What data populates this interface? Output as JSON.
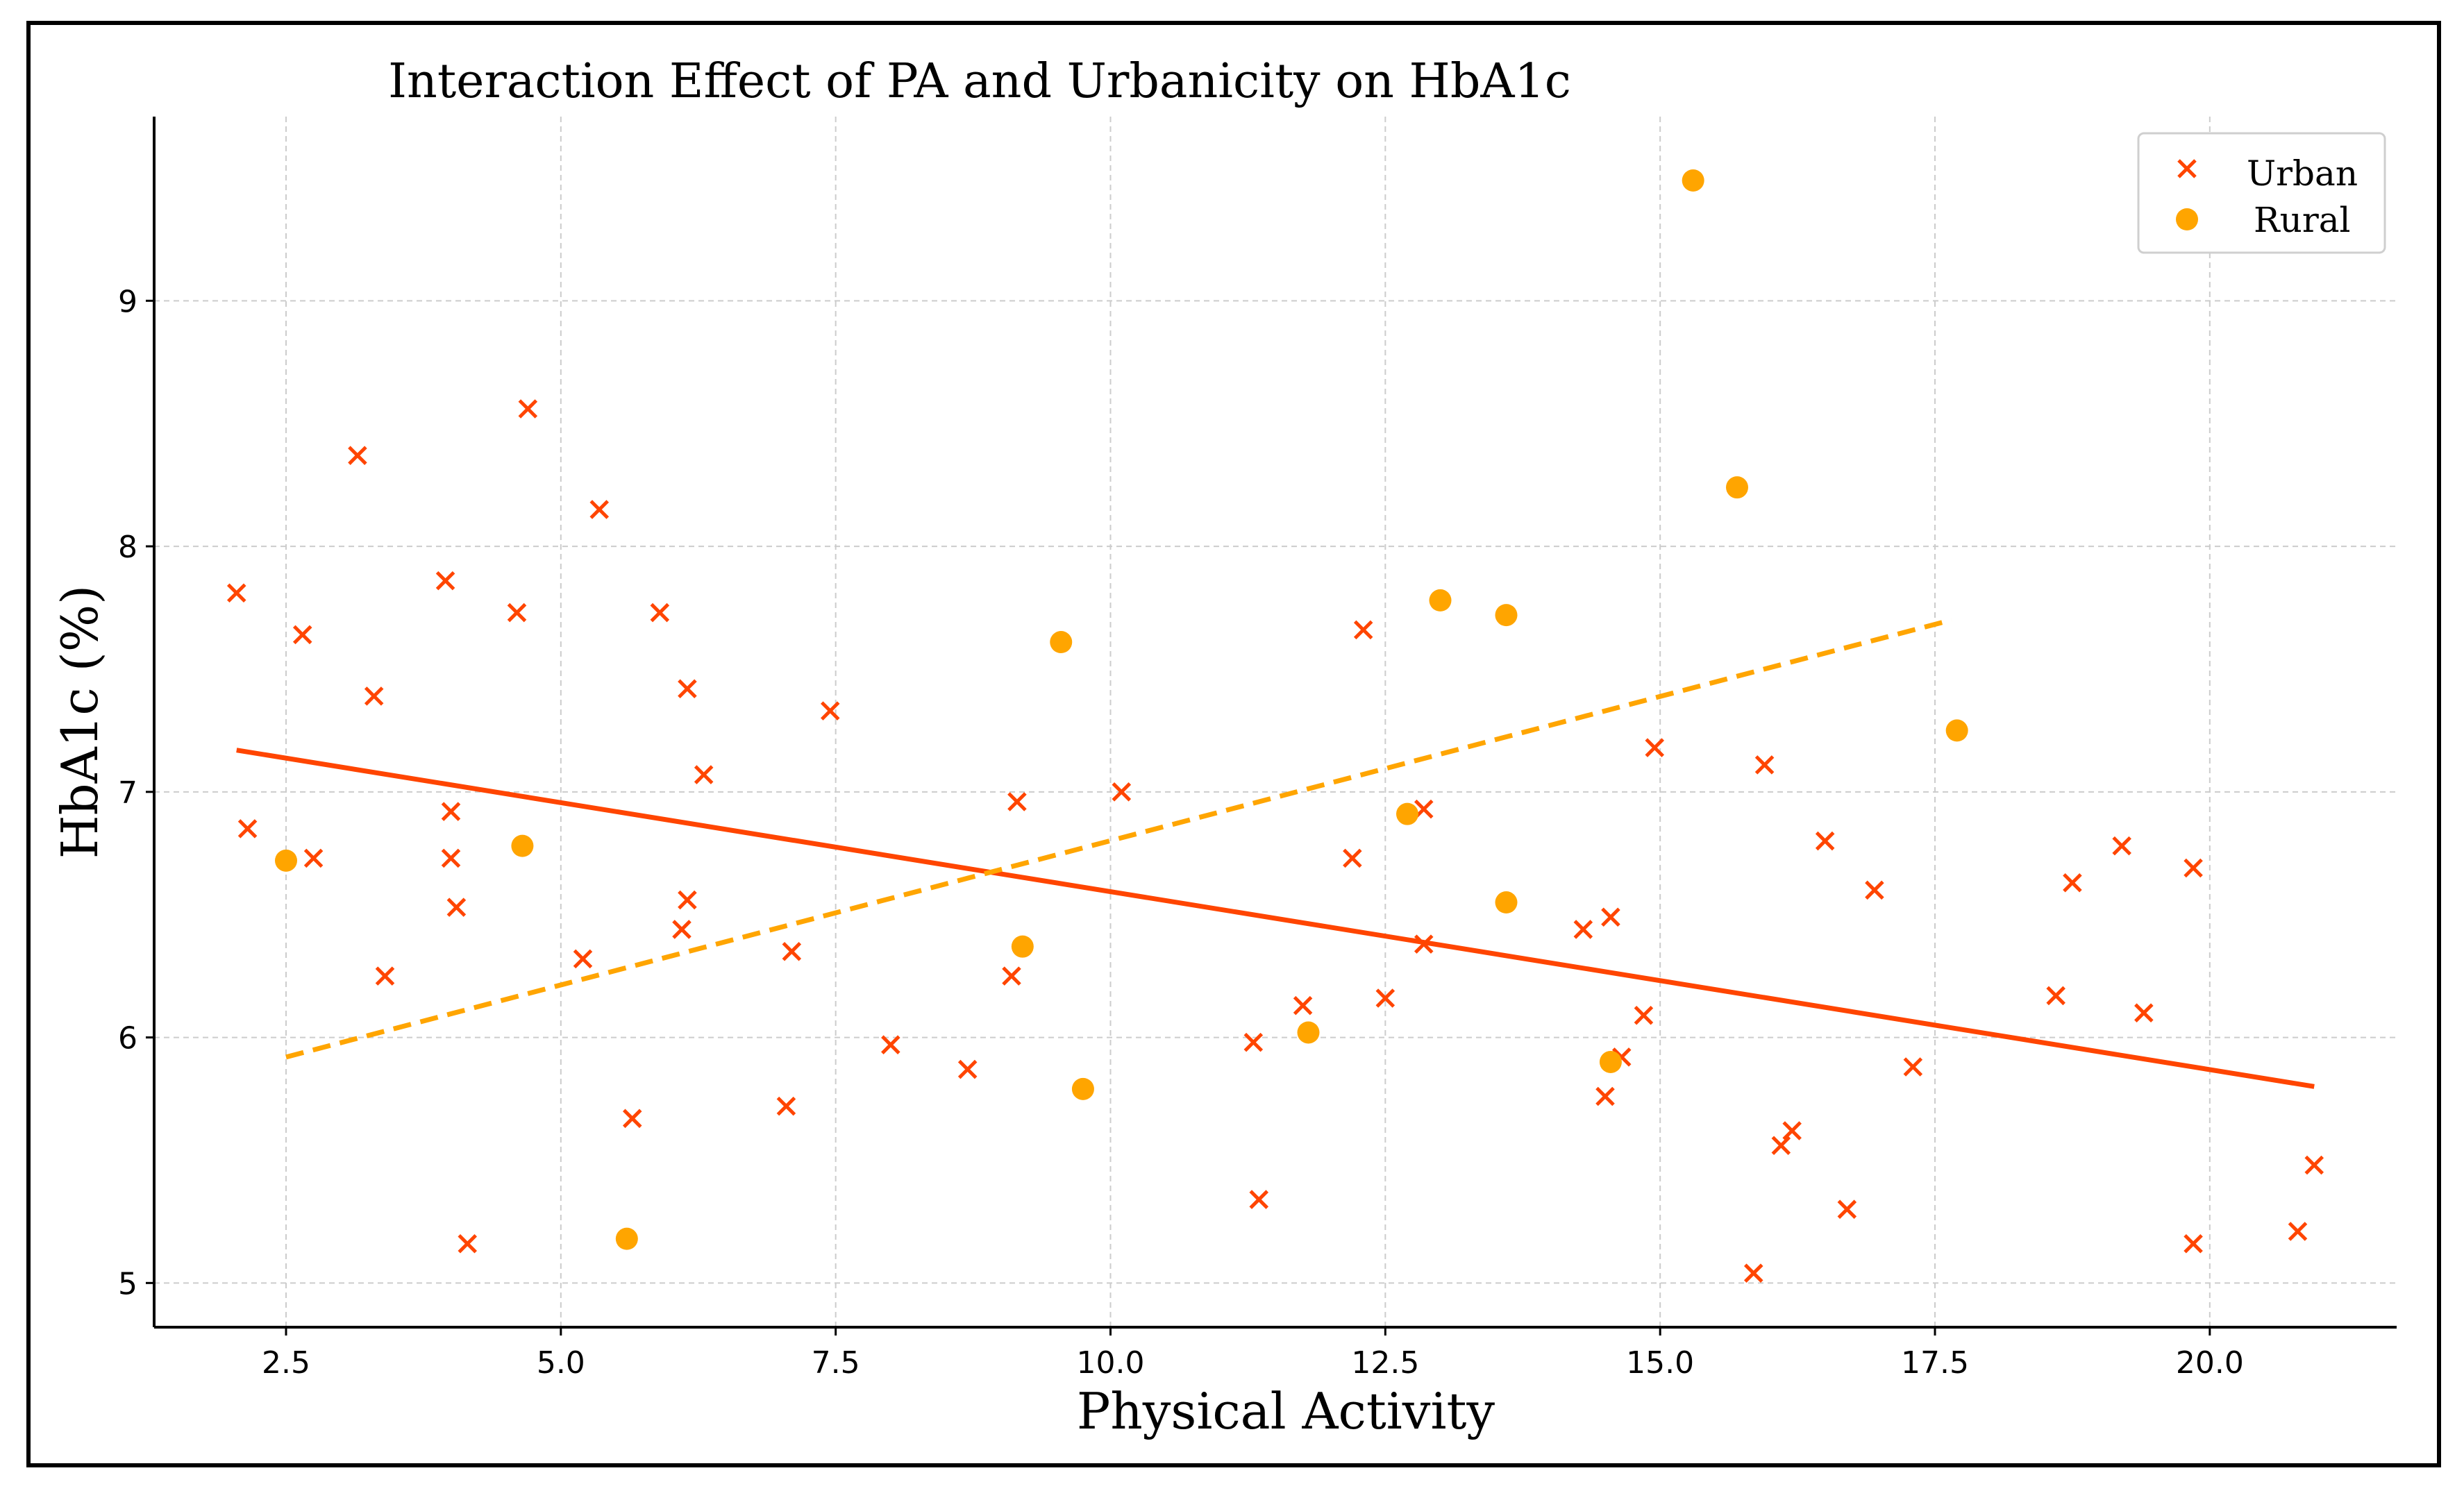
{
  "chart_data": {
    "type": "scatter",
    "title": "Interaction Effect of PA and Urbanicity on HbA1c",
    "xlabel": "Physical Activity",
    "ylabel": "HbA1c (%)",
    "xlim": [
      1.3,
      21.7
    ],
    "ylim": [
      4.82,
      9.75
    ],
    "x_ticks": [
      2.5,
      5.0,
      7.5,
      10.0,
      12.5,
      15.0,
      17.5,
      20.0
    ],
    "x_tick_labels": [
      "2.5",
      "5.0",
      "7.5",
      "10.0",
      "12.5",
      "15.0",
      "17.5",
      "20.0"
    ],
    "y_ticks": [
      5,
      6,
      7,
      8,
      9
    ],
    "y_tick_labels": [
      "5",
      "6",
      "7",
      "8",
      "9"
    ],
    "grid": true,
    "legend_position": "top-right",
    "series": [
      {
        "name": "Urban",
        "marker": "x",
        "color": "#ff4500",
        "points": [
          [
            2.05,
            7.81
          ],
          [
            2.15,
            6.85
          ],
          [
            2.65,
            7.64
          ],
          [
            2.75,
            6.73
          ],
          [
            3.15,
            8.37
          ],
          [
            3.3,
            7.39
          ],
          [
            3.4,
            6.25
          ],
          [
            3.95,
            7.86
          ],
          [
            4.0,
            6.92
          ],
          [
            4.0,
            6.73
          ],
          [
            4.05,
            6.53
          ],
          [
            4.15,
            5.16
          ],
          [
            4.6,
            7.73
          ],
          [
            4.7,
            8.56
          ],
          [
            5.2,
            6.32
          ],
          [
            5.35,
            8.15
          ],
          [
            5.65,
            5.67
          ],
          [
            5.9,
            7.73
          ],
          [
            6.1,
            6.44
          ],
          [
            6.15,
            7.42
          ],
          [
            6.15,
            6.56
          ],
          [
            6.3,
            7.07
          ],
          [
            7.05,
            5.72
          ],
          [
            7.1,
            6.35
          ],
          [
            7.45,
            7.33
          ],
          [
            8.0,
            5.97
          ],
          [
            8.7,
            5.87
          ],
          [
            9.1,
            6.25
          ],
          [
            9.15,
            6.96
          ],
          [
            10.1,
            7.0
          ],
          [
            11.3,
            5.98
          ],
          [
            11.35,
            5.34
          ],
          [
            11.75,
            6.13
          ],
          [
            12.2,
            6.73
          ],
          [
            12.3,
            7.66
          ],
          [
            12.5,
            6.16
          ],
          [
            12.85,
            6.93
          ],
          [
            12.85,
            6.38
          ],
          [
            14.3,
            6.44
          ],
          [
            14.5,
            5.76
          ],
          [
            14.55,
            6.49
          ],
          [
            14.65,
            5.92
          ],
          [
            14.85,
            6.09
          ],
          [
            14.95,
            7.18
          ],
          [
            15.85,
            5.04
          ],
          [
            15.95,
            7.11
          ],
          [
            16.1,
            5.56
          ],
          [
            16.2,
            5.62
          ],
          [
            16.5,
            6.8
          ],
          [
            16.7,
            5.3
          ],
          [
            16.95,
            6.6
          ],
          [
            17.3,
            5.88
          ],
          [
            18.6,
            6.17
          ],
          [
            18.75,
            6.63
          ],
          [
            19.2,
            6.78
          ],
          [
            19.4,
            6.1
          ],
          [
            19.85,
            6.69
          ],
          [
            19.85,
            5.16
          ],
          [
            20.8,
            5.21
          ],
          [
            20.95,
            5.48
          ]
        ],
        "trend_line": [
          [
            2.05,
            7.17
          ],
          [
            20.95,
            5.8
          ]
        ],
        "trend_style": "solid"
      },
      {
        "name": "Rural",
        "marker": "o",
        "color": "#ffa500",
        "points": [
          [
            2.5,
            6.72
          ],
          [
            4.65,
            6.78
          ],
          [
            5.6,
            5.18
          ],
          [
            9.2,
            6.37
          ],
          [
            9.55,
            7.61
          ],
          [
            9.75,
            5.79
          ],
          [
            11.8,
            6.02
          ],
          [
            12.7,
            6.91
          ],
          [
            13.0,
            7.78
          ],
          [
            13.6,
            7.72
          ],
          [
            13.6,
            6.55
          ],
          [
            14.55,
            5.9
          ],
          [
            15.3,
            9.49
          ],
          [
            15.7,
            8.24
          ],
          [
            17.7,
            7.25
          ]
        ],
        "trend_line": [
          [
            2.5,
            5.92
          ],
          [
            17.65,
            7.7
          ]
        ],
        "trend_style": "dashed"
      }
    ]
  }
}
